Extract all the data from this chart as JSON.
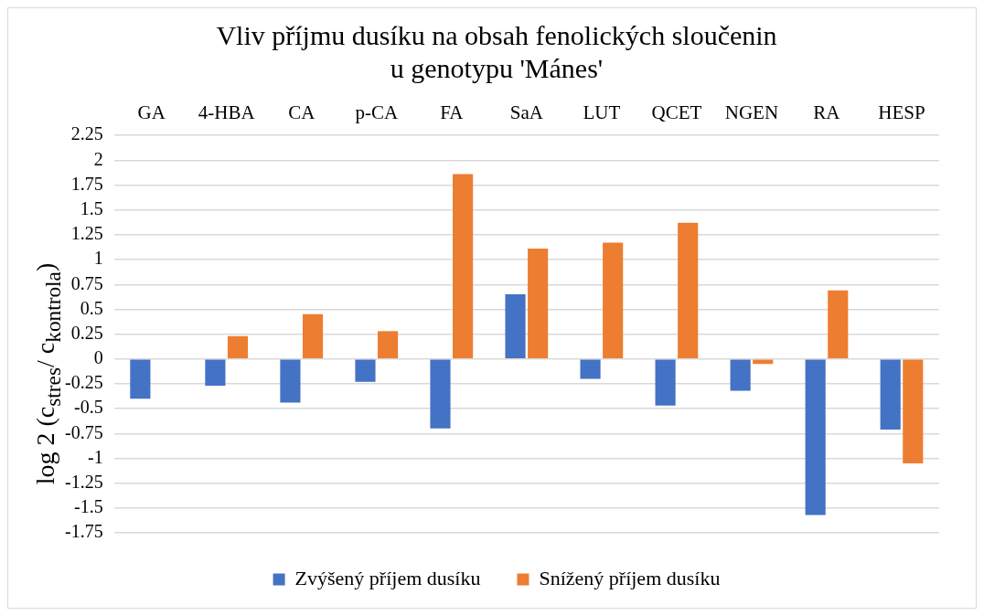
{
  "chart_data": {
    "type": "bar",
    "title": "Vliv příjmu dusíku na obsah fenolických sloučenin\nu genotypu 'Mánes'",
    "ylabel": "log 2 (c$_{stres}$/ c$_{kontrola}$)",
    "categories": [
      "GA",
      "4-HBA",
      "CA",
      "p-CA",
      "FA",
      "SaA",
      "LUT",
      "QCET",
      "NGEN",
      "RA",
      "HESP"
    ],
    "series": [
      {
        "name": "Zvýšený příjem dusíku",
        "color": "#4472c4",
        "values": [
          -0.4,
          -0.27,
          -0.44,
          -0.23,
          -0.7,
          0.65,
          -0.2,
          -0.47,
          -0.32,
          -1.57,
          -0.71
        ]
      },
      {
        "name": "Snížený příjem dusíku",
        "color": "#ed7d31",
        "values": [
          0,
          0.23,
          0.45,
          0.28,
          1.86,
          1.11,
          1.17,
          1.37,
          -0.05,
          0.69,
          -1.05
        ]
      }
    ],
    "ylim": [
      -1.75,
      2.25
    ],
    "yticks": [
      2.25,
      2,
      1.75,
      1.5,
      1.25,
      1,
      0.75,
      0.5,
      0.25,
      0,
      -0.25,
      -0.5,
      -0.75,
      -1,
      -1.25,
      -1.5,
      -1.75
    ],
    "grid": "y",
    "legend": "bottom"
  }
}
